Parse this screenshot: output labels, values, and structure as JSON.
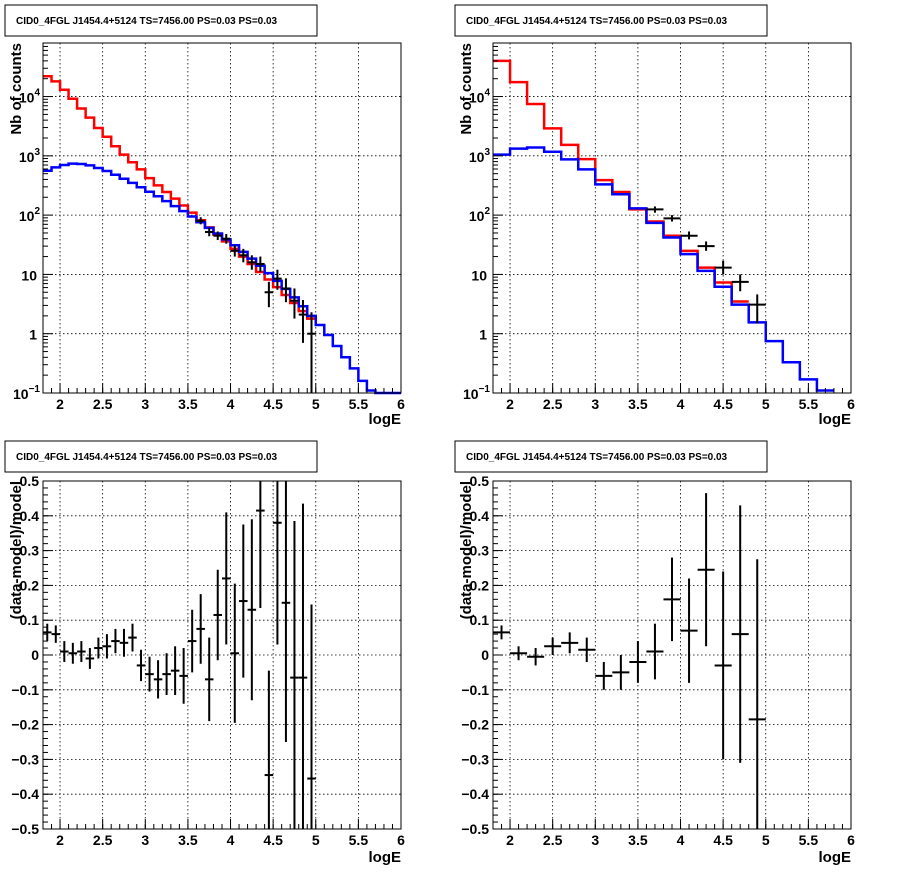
{
  "chart_data": [
    {
      "type": "step-histogram-with-errorbars",
      "title": "CID0_4FGL J1454.4+5124 TS=7456.00 PS=0.03 PS=0.03",
      "xlabel": "logE",
      "ylabel": "Nb of counts",
      "xlim": [
        1.8,
        6
      ],
      "ylim": [
        0.1,
        80000
      ],
      "yscale": "log",
      "grid": true,
      "xticks": [
        "2",
        "2.5",
        "3",
        "3.5",
        "4",
        "4.5",
        "5",
        "5.5",
        "6"
      ],
      "yticks": [
        {
          "v": 0.1,
          "label": "10",
          "sup": "−1"
        },
        {
          "v": 1,
          "label": "1",
          "sup": ""
        },
        {
          "v": 10,
          "label": "10",
          "sup": ""
        },
        {
          "v": 100,
          "label": "10",
          "sup": "2"
        },
        {
          "v": 1000,
          "label": "10",
          "sup": "3"
        },
        {
          "v": 10000,
          "label": "10",
          "sup": "4"
        }
      ],
      "edges": [
        1.8,
        1.9,
        2.0,
        2.1,
        2.2,
        2.3,
        2.4,
        2.5,
        2.6,
        2.7,
        2.8,
        2.9,
        3.0,
        3.1,
        3.2,
        3.3,
        3.4,
        3.5,
        3.6,
        3.7,
        3.8,
        3.9,
        4.0,
        4.1,
        4.2,
        4.3,
        4.4,
        4.5,
        4.6,
        4.7,
        4.8,
        4.9,
        5.0,
        5.1,
        5.2,
        5.3,
        5.4,
        5.5,
        5.6,
        5.7,
        5.8,
        5.9,
        6.0
      ],
      "series": [
        {
          "color": "#ff0000",
          "values": [
            22000,
            18000,
            13000,
            9200,
            6300,
            4400,
            2950,
            2100,
            1450,
            1050,
            780,
            590,
            420,
            318,
            245,
            190,
            145,
            110,
            82,
            62,
            47,
            36,
            27,
            20,
            15,
            11,
            8.2,
            6.1,
            4.5,
            3.3,
            2.4,
            1.8
          ]
        },
        {
          "color": "#0000ff",
          "values": [
            560,
            640,
            700,
            740,
            730,
            690,
            625,
            555,
            480,
            410,
            350,
            295,
            248,
            208,
            172,
            142,
            117,
            95,
            76,
            61,
            49,
            39,
            31,
            24,
            18.5,
            14,
            10.5,
            7.8,
            5.7,
            4.1,
            2.9,
            2.0,
            1.4,
            0.95,
            0.62,
            0.4,
            0.26,
            0.16,
            0.11,
            0.09,
            0.09,
            0.09
          ]
        }
      ],
      "points": [
        {
          "x": 3.65,
          "y": 80,
          "lo": 70,
          "hi": 92,
          "xe": 0.05
        },
        {
          "x": 3.75,
          "y": 52,
          "lo": 44,
          "hi": 61,
          "xe": 0.05
        },
        {
          "x": 3.85,
          "y": 45,
          "lo": 38,
          "hi": 53,
          "xe": 0.05
        },
        {
          "x": 3.95,
          "y": 40,
          "lo": 33,
          "hi": 48,
          "xe": 0.05
        },
        {
          "x": 4.05,
          "y": 25,
          "lo": 20,
          "hi": 31,
          "xe": 0.05
        },
        {
          "x": 4.15,
          "y": 21,
          "lo": 16,
          "hi": 27,
          "xe": 0.05
        },
        {
          "x": 4.25,
          "y": 16,
          "lo": 12,
          "hi": 21,
          "xe": 0.05
        },
        {
          "x": 4.35,
          "y": 15,
          "lo": 11,
          "hi": 20,
          "xe": 0.05
        },
        {
          "x": 4.45,
          "y": 5,
          "lo": 2.8,
          "hi": 7.5,
          "xe": 0.05
        },
        {
          "x": 4.55,
          "y": 8.5,
          "lo": 5.5,
          "hi": 12,
          "xe": 0.05
        },
        {
          "x": 4.65,
          "y": 5.8,
          "lo": 3.4,
          "hi": 8.6,
          "xe": 0.05
        },
        {
          "x": 4.75,
          "y": 3.6,
          "lo": 1.8,
          "hi": 5.8,
          "xe": 0.05
        },
        {
          "x": 4.85,
          "y": 2.1,
          "lo": 0.7,
          "hi": 3.7,
          "xe": 0.05
        },
        {
          "x": 4.95,
          "y": 1.0,
          "lo": 0.1,
          "hi": 2.3,
          "xe": 0.05
        }
      ]
    },
    {
      "type": "step-histogram-with-errorbars",
      "title": "CID0_4FGL J1454.4+5124 TS=7456.00 PS=0.03 PS=0.03",
      "xlabel": "logE",
      "ylabel": "Nb of counts",
      "xlim": [
        1.8,
        6
      ],
      "ylim": [
        0.1,
        80000
      ],
      "yscale": "log",
      "grid": true,
      "xticks": [
        "2",
        "2.5",
        "3",
        "3.5",
        "4",
        "4.5",
        "5",
        "5.5",
        "6"
      ],
      "yticks": [
        {
          "v": 0.1,
          "label": "10",
          "sup": "−1"
        },
        {
          "v": 1,
          "label": "1",
          "sup": ""
        },
        {
          "v": 10,
          "label": "10",
          "sup": ""
        },
        {
          "v": 100,
          "label": "10",
          "sup": "2"
        },
        {
          "v": 1000,
          "label": "10",
          "sup": "3"
        },
        {
          "v": 10000,
          "label": "10",
          "sup": "4"
        }
      ],
      "edges": [
        1.8,
        2.0,
        2.2,
        2.4,
        2.6,
        2.8,
        3.0,
        3.2,
        3.4,
        3.6,
        3.8,
        4.0,
        4.2,
        4.4,
        4.6,
        4.8,
        5.0,
        5.2,
        5.4,
        5.6,
        5.8,
        6.0
      ],
      "series": [
        {
          "color": "#ff0000",
          "values": [
            40000,
            17500,
            7500,
            2900,
            1530,
            880,
            390,
            245,
            125,
            78,
            45,
            25,
            13,
            7.3,
            3.5
          ]
        },
        {
          "color": "#0000ff",
          "values": [
            1050,
            1320,
            1380,
            1170,
            870,
            590,
            330,
            225,
            130,
            74,
            42,
            22,
            11.5,
            6.2,
            3.1,
            1.55,
            0.75,
            0.33,
            0.17,
            0.11
          ]
        }
      ],
      "points": [
        {
          "x": 3.7,
          "y": 125,
          "lo": 110,
          "hi": 140,
          "xe": 0.1
        },
        {
          "x": 3.9,
          "y": 88,
          "lo": 78,
          "hi": 100,
          "xe": 0.1
        },
        {
          "x": 4.1,
          "y": 45,
          "lo": 39,
          "hi": 53,
          "xe": 0.1
        },
        {
          "x": 4.3,
          "y": 30,
          "lo": 25,
          "hi": 36,
          "xe": 0.1
        },
        {
          "x": 4.5,
          "y": 13,
          "lo": 10,
          "hi": 17,
          "xe": 0.1
        },
        {
          "x": 4.7,
          "y": 7.5,
          "lo": 5.2,
          "hi": 10,
          "xe": 0.1
        },
        {
          "x": 4.9,
          "y": 3.1,
          "lo": 1.5,
          "hi": 4.6,
          "xe": 0.1
        }
      ]
    },
    {
      "type": "scatter-with-errorbars",
      "title": "CID0_4FGL J1454.4+5124 TS=7456.00 PS=0.03 PS=0.03",
      "xlabel": "logE",
      "ylabel": "(data-model)/model",
      "xlim": [
        1.8,
        6
      ],
      "ylim": [
        -0.5,
        0.5
      ],
      "grid": true,
      "xticks": [
        "2",
        "2.5",
        "3",
        "3.5",
        "4",
        "4.5",
        "5",
        "5.5",
        "6"
      ],
      "yticks": [
        "−0.5",
        "−0.4",
        "−0.3",
        "−0.2",
        "−0.1",
        "0",
        "0.1",
        "0.2",
        "0.3",
        "0.4",
        "0.5"
      ],
      "points": [
        {
          "x": 1.85,
          "y": 0.065,
          "e": 0.025,
          "xe": 0.05
        },
        {
          "x": 1.95,
          "y": 0.06,
          "e": 0.025,
          "xe": 0.05
        },
        {
          "x": 2.05,
          "y": 0.01,
          "e": 0.03,
          "xe": 0.05
        },
        {
          "x": 2.15,
          "y": 0.005,
          "e": 0.03,
          "xe": 0.05
        },
        {
          "x": 2.25,
          "y": 0.01,
          "e": 0.03,
          "xe": 0.05
        },
        {
          "x": 2.35,
          "y": -0.01,
          "e": 0.03,
          "xe": 0.05
        },
        {
          "x": 2.45,
          "y": 0.02,
          "e": 0.03,
          "xe": 0.05
        },
        {
          "x": 2.55,
          "y": 0.025,
          "e": 0.035,
          "xe": 0.05
        },
        {
          "x": 2.65,
          "y": 0.04,
          "e": 0.035,
          "xe": 0.05
        },
        {
          "x": 2.75,
          "y": 0.035,
          "e": 0.04,
          "xe": 0.05
        },
        {
          "x": 2.85,
          "y": 0.05,
          "e": 0.04,
          "xe": 0.05
        },
        {
          "x": 2.95,
          "y": -0.03,
          "e": 0.045,
          "xe": 0.05
        },
        {
          "x": 3.05,
          "y": -0.055,
          "e": 0.05,
          "xe": 0.05
        },
        {
          "x": 3.15,
          "y": -0.07,
          "e": 0.055,
          "xe": 0.05
        },
        {
          "x": 3.25,
          "y": -0.055,
          "e": 0.06,
          "xe": 0.05
        },
        {
          "x": 3.35,
          "y": -0.045,
          "e": 0.07,
          "xe": 0.05
        },
        {
          "x": 3.45,
          "y": -0.06,
          "e": 0.08,
          "xe": 0.05
        },
        {
          "x": 3.55,
          "y": 0.04,
          "e": 0.09,
          "xe": 0.05
        },
        {
          "x": 3.65,
          "y": 0.075,
          "e": 0.1,
          "xe": 0.05
        },
        {
          "x": 3.75,
          "y": -0.07,
          "e": 0.12,
          "xe": 0.05
        },
        {
          "x": 3.85,
          "y": 0.115,
          "e": 0.13,
          "xe": 0.05
        },
        {
          "x": 3.95,
          "y": 0.22,
          "e": 0.19,
          "xe": 0.05
        },
        {
          "x": 4.05,
          "y": 0.005,
          "e": 0.2,
          "xe": 0.05
        },
        {
          "x": 4.15,
          "y": 0.155,
          "e": 0.22,
          "xe": 0.05
        },
        {
          "x": 4.25,
          "y": 0.13,
          "e": 0.26,
          "xe": 0.05
        },
        {
          "x": 4.35,
          "y": 0.415,
          "e": 0.28,
          "xe": 0.05
        },
        {
          "x": 4.45,
          "y": -0.345,
          "e": 0.3,
          "xe": 0.05
        },
        {
          "x": 4.55,
          "y": 0.38,
          "e": 0.35,
          "xe": 0.05
        },
        {
          "x": 4.65,
          "y": 0.15,
          "e": 0.4,
          "xe": 0.05
        },
        {
          "x": 4.75,
          "y": -0.065,
          "e": 0.45,
          "xe": 0.05
        },
        {
          "x": 4.85,
          "y": -0.065,
          "e": 0.5,
          "xe": 0.05
        },
        {
          "x": 4.95,
          "y": -0.355,
          "e": 0.5,
          "xe": 0.05
        }
      ]
    },
    {
      "type": "scatter-with-errorbars",
      "title": "CID0_4FGL J1454.4+5124 TS=7456.00 PS=0.03 PS=0.03",
      "xlabel": "logE",
      "ylabel": "(data-model)/model",
      "xlim": [
        1.8,
        6
      ],
      "ylim": [
        -0.5,
        0.5
      ],
      "grid": true,
      "xticks": [
        "2",
        "2.5",
        "3",
        "3.5",
        "4",
        "4.5",
        "5",
        "5.5",
        "6"
      ],
      "yticks": [
        "−0.5",
        "−0.4",
        "−0.3",
        "−0.2",
        "−0.1",
        "0",
        "0.1",
        "0.2",
        "0.3",
        "0.4",
        "0.5"
      ],
      "points": [
        {
          "x": 1.9,
          "y": 0.065,
          "e": 0.02,
          "xe": 0.1
        },
        {
          "x": 2.1,
          "y": 0.005,
          "e": 0.02,
          "xe": 0.1
        },
        {
          "x": 2.3,
          "y": -0.005,
          "e": 0.025,
          "xe": 0.1
        },
        {
          "x": 2.5,
          "y": 0.025,
          "e": 0.025,
          "xe": 0.1
        },
        {
          "x": 2.7,
          "y": 0.035,
          "e": 0.03,
          "xe": 0.1
        },
        {
          "x": 2.9,
          "y": 0.015,
          "e": 0.035,
          "xe": 0.1
        },
        {
          "x": 3.1,
          "y": -0.06,
          "e": 0.04,
          "xe": 0.1
        },
        {
          "x": 3.3,
          "y": -0.05,
          "e": 0.05,
          "xe": 0.1
        },
        {
          "x": 3.5,
          "y": -0.02,
          "e": 0.06,
          "xe": 0.1
        },
        {
          "x": 3.7,
          "y": 0.01,
          "e": 0.08,
          "xe": 0.1
        },
        {
          "x": 3.9,
          "y": 0.16,
          "e": 0.12,
          "xe": 0.1
        },
        {
          "x": 4.1,
          "y": 0.07,
          "e": 0.15,
          "xe": 0.1
        },
        {
          "x": 4.3,
          "y": 0.245,
          "e": 0.22,
          "xe": 0.1
        },
        {
          "x": 4.5,
          "y": -0.03,
          "e": 0.27,
          "xe": 0.1
        },
        {
          "x": 4.7,
          "y": 0.06,
          "e": 0.37,
          "xe": 0.1
        },
        {
          "x": 4.9,
          "y": -0.185,
          "e": 0.46,
          "xe": 0.1
        }
      ]
    }
  ]
}
